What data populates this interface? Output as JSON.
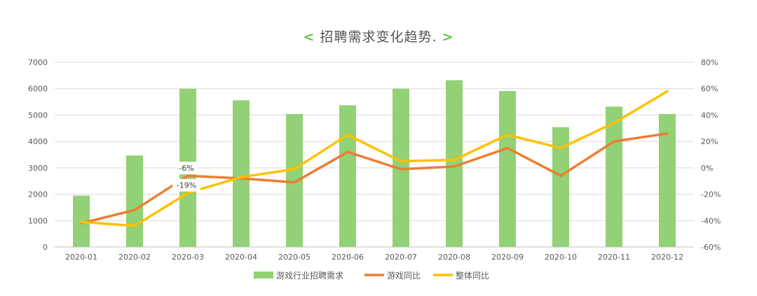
{
  "chart_data": {
    "type": "bar",
    "title": "招聘需求变化趋势.",
    "categories": [
      "2020-01",
      "2020-02",
      "2020-03",
      "2020-04",
      "2020-05",
      "2020-06",
      "2020-07",
      "2020-08",
      "2020-09",
      "2020-10",
      "2020-11",
      "2020-12"
    ],
    "series": [
      {
        "name": "游戏行业招聘需求",
        "type": "bar",
        "axis": "left",
        "color": "#92d175",
        "values": [
          1950,
          3470,
          6000,
          5560,
          5040,
          5370,
          6000,
          6320,
          5910,
          4540,
          5320,
          5040
        ]
      },
      {
        "name": "游戏同比",
        "type": "line",
        "axis": "right",
        "color": "#ed7d31",
        "values": [
          -42,
          -32,
          -6,
          -8,
          -11,
          12,
          -1,
          1,
          15,
          -6,
          20,
          26
        ]
      },
      {
        "name": "整体同比",
        "type": "line",
        "axis": "right",
        "color": "#ffc000",
        "values": [
          -41,
          -44,
          -19,
          -7,
          -1,
          25,
          5,
          6,
          25,
          15,
          34,
          58
        ]
      }
    ],
    "data_labels": [
      {
        "series": "游戏同比",
        "category": "2020-03",
        "text": "-6%"
      },
      {
        "series": "整体同比",
        "category": "2020-03",
        "text": "-19%"
      }
    ],
    "y_left": {
      "ticks": [
        "0",
        "1000",
        "2000",
        "3000",
        "4000",
        "5000",
        "6000",
        "7000"
      ],
      "range": [
        0,
        7000
      ]
    },
    "y_right": {
      "ticks": [
        "-60%",
        "-40%",
        "-20%",
        "0%",
        "20%",
        "40%",
        "60%",
        "80%"
      ],
      "range": [
        -60,
        80
      ]
    },
    "grid": true,
    "legend_position": "bottom"
  }
}
